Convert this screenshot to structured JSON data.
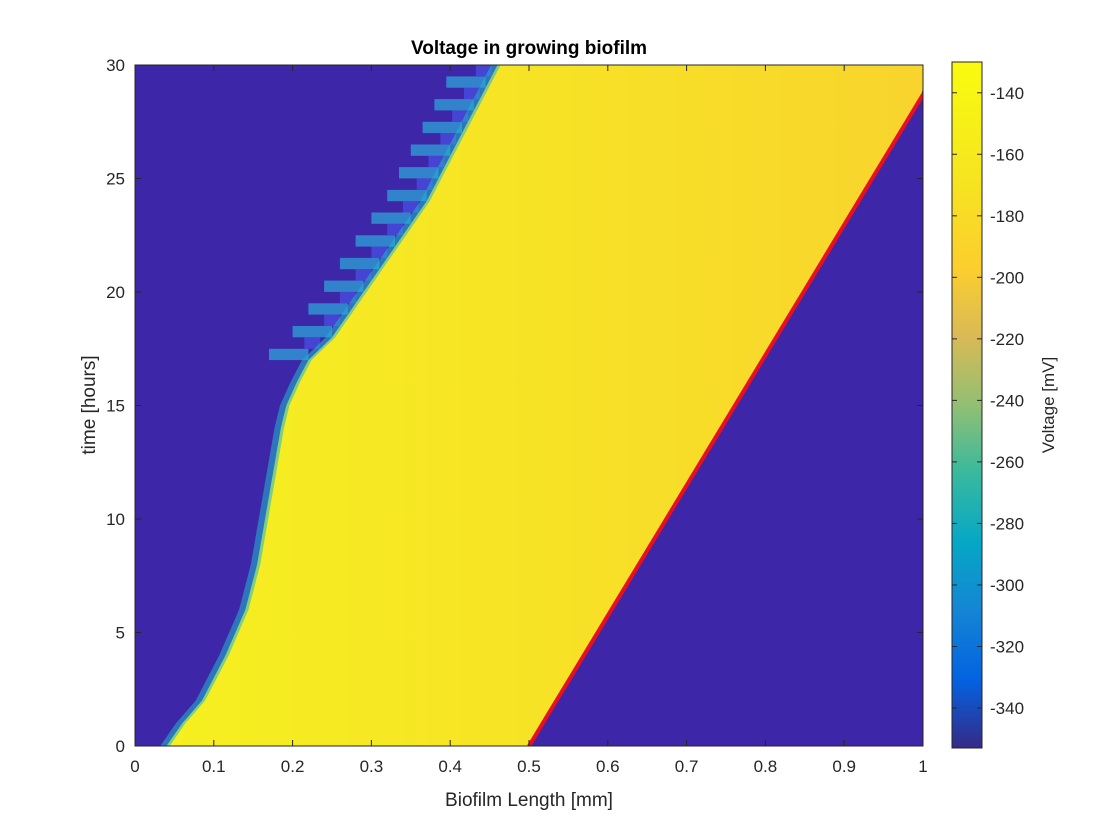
{
  "chart_data": {
    "type": "heatmap",
    "title": "Voltage in growing biofilm",
    "xlabel": "Biofilm Length [mm]",
    "ylabel": "time [hours]",
    "xlim": [
      0,
      1
    ],
    "ylim": [
      0,
      30
    ],
    "x_ticks": [
      0,
      0.1,
      0.2,
      0.3,
      0.4,
      0.5,
      0.6,
      0.7,
      0.8,
      0.9,
      1
    ],
    "x_tick_labels": [
      "0",
      "0.1",
      "0.2",
      "0.3",
      "0.4",
      "0.5",
      "0.6",
      "0.7",
      "0.8",
      "0.9",
      "1"
    ],
    "y_ticks": [
      0,
      5,
      10,
      15,
      20,
      25,
      30
    ],
    "y_tick_labels": [
      "0",
      "5",
      "10",
      "15",
      "20",
      "25",
      "30"
    ],
    "colorbar": {
      "label": "Voltage [mV]",
      "min": -353,
      "max": -130,
      "colormap": "parula",
      "ticks": [
        -140,
        -160,
        -180,
        -200,
        -220,
        -240,
        -260,
        -280,
        -300,
        -320,
        -340
      ],
      "tick_labels": [
        "-140",
        "-160",
        "-180",
        "-200",
        "-220",
        "-240",
        "-260",
        "-280",
        "-300",
        "-320",
        "-340"
      ]
    },
    "colors": {
      "boundary_line": "#e8101c",
      "low_voltage": "#3e26a8",
      "high_voltage": "#f9fb0e"
    },
    "biofilm_edge": {
      "name": "boundary",
      "x": [
        0.5,
        1.0
      ],
      "y": [
        0,
        28.7
      ]
    },
    "depolarization_front": {
      "t": [
        0,
        1,
        2,
        4,
        6,
        8,
        10,
        12,
        14,
        15,
        16,
        17,
        18,
        20,
        22,
        24,
        26,
        28,
        30
      ],
      "x": [
        0.04,
        0.06,
        0.085,
        0.115,
        0.14,
        0.155,
        0.165,
        0.175,
        0.185,
        0.192,
        0.205,
        0.22,
        0.25,
        0.29,
        0.33,
        0.37,
        0.4,
        0.43,
        0.46
      ]
    },
    "grid": false
  }
}
